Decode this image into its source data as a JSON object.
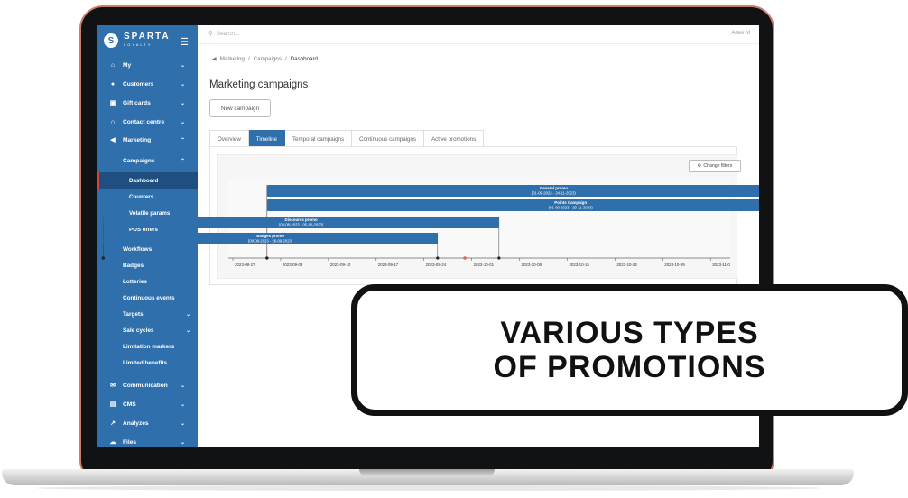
{
  "sidebar": {
    "logo_mark": "S",
    "logo_text": "SPARTA",
    "logo_sub": "LOYALTY",
    "menu_icon": "hamburger-icon",
    "items": [
      {
        "label": "My",
        "icon": "home-icon"
      },
      {
        "label": "Customers",
        "icon": "person-icon"
      },
      {
        "label": "Gift cards",
        "icon": "gift-icon"
      },
      {
        "label": "Contact centre",
        "icon": "headset-icon"
      },
      {
        "label": "Marketing",
        "icon": "megaphone-icon"
      }
    ],
    "campaigns_label": "Campaigns",
    "campaign_subitems": [
      "Dashboard",
      "Counters",
      "Volatile params",
      "POS offers"
    ],
    "marketing_subitems": [
      "Workflows",
      "Badges",
      "Lotteries",
      "Continuous events",
      "Targets",
      "Sale cycles",
      "Limitation markers",
      "Limited benefits"
    ],
    "bottom_items": [
      {
        "label": "Communication",
        "icon": "envelope-icon"
      },
      {
        "label": "CMS",
        "icon": "cms-icon"
      },
      {
        "label": "Analyzes",
        "icon": "trend-icon"
      },
      {
        "label": "Files",
        "icon": "cloud-icon"
      }
    ],
    "active_item": "Dashboard",
    "accent": "#2f6fab"
  },
  "topbar": {
    "search_placeholder": "Search...",
    "user": "Artek M"
  },
  "breadcrumb": [
    "Marketing",
    "Campaigns",
    "Dashboard"
  ],
  "page_title": "Marketing campaigns",
  "new_campaign_label": "New campaign",
  "tabs": [
    "Overview",
    "Timeline",
    "Temporal campaigns",
    "Continuous campaigns",
    "Active promotions"
  ],
  "active_tab": "Timeline",
  "change_filters_label": "Change filters",
  "timeline": {
    "campaigns": [
      {
        "name": "General promo",
        "dates": "(01-09-2023 - 24-11-2023)",
        "start": "2023-09-01",
        "end": "2023-11-24"
      },
      {
        "name": "Points Campaign",
        "dates": "(01-09-2023 - 29-11-2023)",
        "start": "2023-09-01",
        "end": "2023-11-29"
      },
      {
        "name": "Discounts promo",
        "dates": "(08-08-2023 - 05-10-2023)",
        "start": "2023-08-08",
        "end": "2023-10-05"
      },
      {
        "name": "Badges promo",
        "dates": "(08-08-2023 - 26-09-2023)",
        "start": "2023-08-08",
        "end": "2023-09-26"
      }
    ],
    "ticks": [
      "2023-08-27",
      "2023-09-03",
      "2023-09-10",
      "2023-09-17",
      "2023-09-24",
      "2023-10-01",
      "2023-10-08",
      "2023-10-15",
      "2023-10-22",
      "2023-10-29",
      "2023-11-0"
    ],
    "bar_color": "#2f6fab"
  },
  "banner": {
    "line1": "VARIOUS TYPES",
    "line2": "OF PROMOTIONS"
  }
}
